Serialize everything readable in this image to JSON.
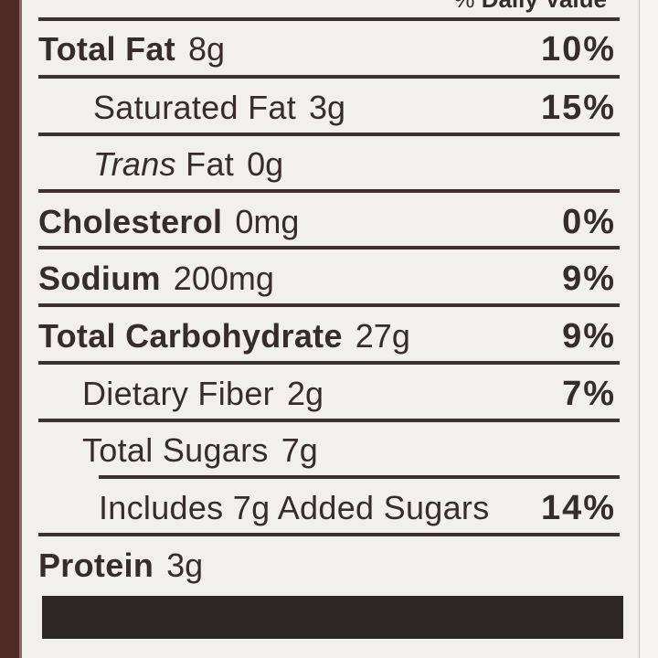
{
  "header": {
    "pct_sign": "%",
    "label": "Daily Value"
  },
  "rows": [
    {
      "name": "Total Fat",
      "amount": "8g",
      "dv": "10%"
    },
    {
      "name": "Saturated Fat",
      "amount": "3g",
      "dv": "15%"
    },
    {
      "name_italic": "Trans",
      "name": "Fat",
      "amount": "0g",
      "dv": ""
    },
    {
      "name": "Cholesterol",
      "amount": "0mg",
      "dv": "0%"
    },
    {
      "name": "Sodium",
      "amount": "200mg",
      "dv": "9%"
    },
    {
      "name": "Total Carbohydrate",
      "amount": "27g",
      "dv": "9%"
    },
    {
      "name": "Dietary Fiber",
      "amount": "2g",
      "dv": "7%"
    },
    {
      "name": "Total Sugars",
      "amount": "7g",
      "dv": ""
    },
    {
      "name": "Includes 7g Added Sugars",
      "dv": "14%"
    },
    {
      "name": "Protein",
      "amount": "3g",
      "dv": ""
    }
  ]
}
